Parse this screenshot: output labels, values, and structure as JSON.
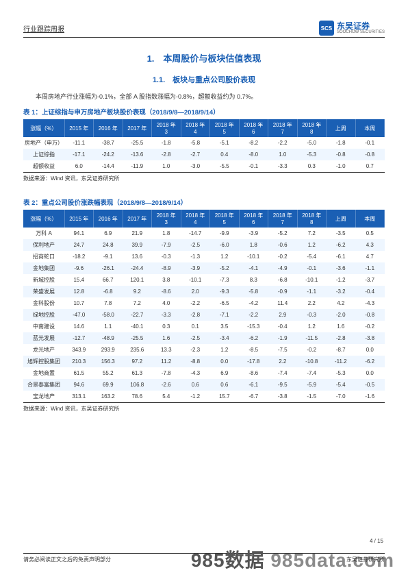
{
  "header": {
    "doc_type": "行业跟踪周报",
    "logo_cn": "东吴证券",
    "logo_en": "SOOCHOW SECURITIES",
    "logo_mark": "SCS"
  },
  "section1": {
    "h1": "1.　本周股价与板块估值表现",
    "h2": "1.1.　板块与重点公司股价表现",
    "intro": "本周房地产行业涨幅为-0.1%，全部 A 股指数涨幅为-0.8%，超额收益约为 0.7%。"
  },
  "table1": {
    "caption": "表 1：上证综指与申万房地产板块股价表现（2018/9/8—2018/9/14）",
    "source": "数据来源：Wind 资讯，东吴证券研究所",
    "columns": [
      "涨幅（%）",
      "2015 年",
      "2016 年",
      "2017 年",
      "2018 年 3 月",
      "2018 年 4 月",
      "2018 年 5 月",
      "2018 年 6 月",
      "2018 年 7 月",
      "2018 年 8 月",
      "上周",
      "本周"
    ],
    "rows": [
      [
        "房地产（申万）",
        "-11.1",
        "-38.7",
        "-25.5",
        "-1.8",
        "-5.8",
        "-5.1",
        "-8.2",
        "-2.2",
        "-5.0",
        "-1.8",
        "-0.1"
      ],
      [
        "上证综指",
        "-17.1",
        "-24.2",
        "-13.6",
        "-2.8",
        "-2.7",
        "0.4",
        "-8.0",
        "1.0",
        "-5.3",
        "-0.8",
        "-0.8"
      ],
      [
        "超额收益",
        "6.0",
        "-14.4",
        "-11.9",
        "1.0",
        "-3.0",
        "-5.5",
        "-0.1",
        "-3.3",
        "0.3",
        "-1.0",
        "0.7"
      ]
    ]
  },
  "table2": {
    "caption": "表 2：重点公司股价涨跌幅表现（2018/9/8—2018/9/14）",
    "source": "数据来源：Wind 资讯，东吴证券研究所",
    "columns": [
      "涨幅（%）",
      "2015 年",
      "2016 年",
      "2017 年",
      "2018 年 3 月",
      "2018 年 4 月",
      "2018 年 5 月",
      "2018 年 6 月",
      "2018 年 7 月",
      "2018 年 8 月",
      "上周",
      "本周"
    ],
    "rows": [
      [
        "万科 A",
        "94.1",
        "6.9",
        "21.9",
        "1.8",
        "-14.7",
        "-9.9",
        "-3.9",
        "-5.2",
        "7.2",
        "-3.5",
        "0.5"
      ],
      [
        "保利地产",
        "24.7",
        "24.8",
        "39.9",
        "-7.9",
        "-2.5",
        "-6.0",
        "1.8",
        "-0.6",
        "1.2",
        "-6.2",
        "4.3"
      ],
      [
        "招商蛇口",
        "-18.2",
        "-9.1",
        "13.6",
        "-0.3",
        "-1.3",
        "1.2",
        "-10.1",
        "-0.2",
        "-5.4",
        "-6.1",
        "4.7"
      ],
      [
        "金地集团",
        "-9.6",
        "-26.1",
        "-24.4",
        "-8.9",
        "-3.9",
        "-5.2",
        "-4.1",
        "-4.9",
        "-0.1",
        "-3.6",
        "-1.1"
      ],
      [
        "新城控股",
        "15.4",
        "66.7",
        "120.1",
        "3.8",
        "-10.1",
        "-7.3",
        "8.3",
        "-6.8",
        "-10.1",
        "-1.2",
        "-3.7"
      ],
      [
        "荣盛发展",
        "12.8",
        "-6.8",
        "9.2",
        "-8.6",
        "2.0",
        "-9.3",
        "-5.8",
        "-0.9",
        "-1.1",
        "-3.2",
        "-0.4"
      ],
      [
        "金科股份",
        "10.7",
        "7.8",
        "7.2",
        "4.0",
        "-2.2",
        "-6.5",
        "-4.2",
        "11.4",
        "2.2",
        "4.2",
        "-4.3"
      ],
      [
        "绿地控股",
        "-47.0",
        "-58.0",
        "-22.7",
        "-3.3",
        "-2.8",
        "-7.1",
        "-2.2",
        "2.9",
        "-0.3",
        "-2.0",
        "-0.8"
      ],
      [
        "中南建设",
        "14.6",
        "1.1",
        "-40.1",
        "0.3",
        "0.1",
        "3.5",
        "-15.3",
        "-0.4",
        "1.2",
        "1.6",
        "-0.2"
      ],
      [
        "蓝光发展",
        "-12.7",
        "-48.9",
        "-25.5",
        "1.6",
        "-2.5",
        "-3.4",
        "-6.2",
        "-1.9",
        "-11.5",
        "-2.8",
        "-3.8"
      ],
      [
        "龙光地产",
        "343.9",
        "293.9",
        "235.6",
        "13.3",
        "-2.3",
        "1.2",
        "-8.5",
        "-7.5",
        "-0.2",
        "-8.7",
        "0.0"
      ],
      [
        "旭辉控股集团",
        "210.3",
        "156.3",
        "97.2",
        "11.2",
        "-8.8",
        "0.0",
        "-17.8",
        "2.2",
        "-10.8",
        "-11.2",
        "-6.2"
      ],
      [
        "金地商置",
        "61.5",
        "55.2",
        "61.3",
        "-7.8",
        "-4.3",
        "6.9",
        "-8.6",
        "-7.4",
        "-7.4",
        "-5.3",
        "0.0"
      ],
      [
        "合景泰富集团",
        "94.6",
        "69.9",
        "106.8",
        "-2.6",
        "0.6",
        "0.6",
        "-6.1",
        "-9.5",
        "-5.9",
        "-5.4",
        "-0.5"
      ],
      [
        "宝龙地产",
        "313.1",
        "163.2",
        "78.6",
        "5.4",
        "-1.2",
        "15.7",
        "-6.7",
        "-3.8",
        "-1.5",
        "-7.0",
        "-1.6"
      ]
    ]
  },
  "footer": {
    "page": "4 / 15",
    "disclaimer": "请务必阅读正文之后的免责声明部分",
    "right_text": "东吴证券研究所"
  },
  "watermark": {
    "a": "985数据",
    "b": "985data.com"
  }
}
